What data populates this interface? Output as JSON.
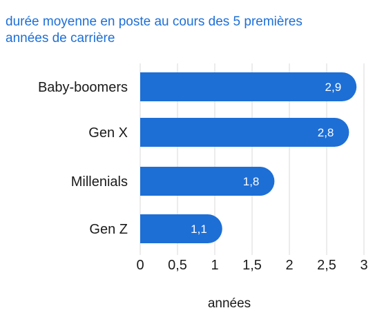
{
  "chart_data": {
    "type": "bar",
    "orientation": "horizontal",
    "title": "durée moyenne en poste au cours des 5 premières\nannées de carrière",
    "categories": [
      "Baby-boomers",
      "Gen X",
      "Millenials",
      "Gen Z"
    ],
    "values": [
      2.9,
      2.8,
      1.8,
      1.1
    ],
    "value_labels": [
      "2,9",
      "2,8",
      "1,8",
      "1,1"
    ],
    "xlabel": "années",
    "ylabel": "",
    "xlim": [
      0,
      3
    ],
    "xticks": [
      0,
      0.5,
      1,
      1.5,
      2,
      2.5,
      3
    ],
    "xtick_labels": [
      "0",
      "0,5",
      "1",
      "1,5",
      "2",
      "2,5",
      "3"
    ],
    "grid": true,
    "bar_color": "#1d6fd6",
    "title_color": "#1d6fd6",
    "grid_color": "#d9d9d9"
  }
}
